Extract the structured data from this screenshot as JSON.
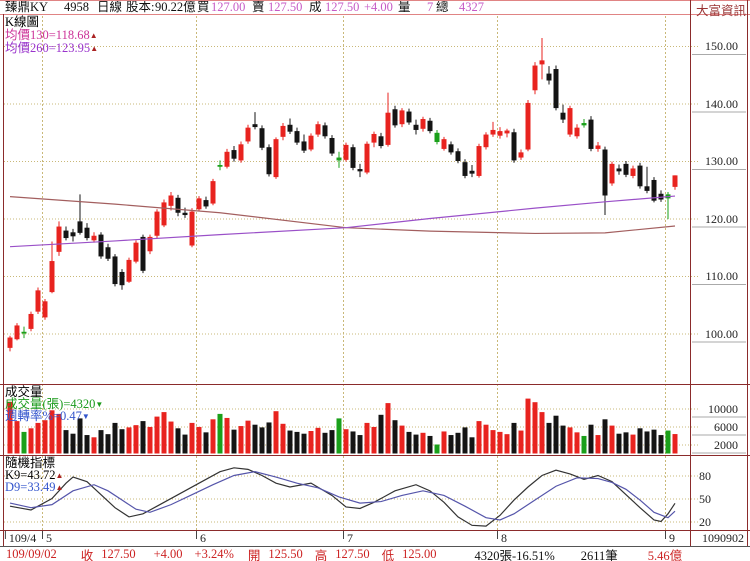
{
  "header": {
    "stock_name": "臻鼎KY",
    "stock_id": "4958",
    "period": "日線",
    "capital_label": "股本:",
    "capital": "90.22億",
    "bid_label": "買",
    "bid": "127.00",
    "ask_label": "賣",
    "ask": "127.50",
    "last_label": "成",
    "last": "127.50",
    "change": "+4.00",
    "vol_label": "量",
    "vol": "7",
    "total_label": "總",
    "total": "4327",
    "brand": "大富資訊"
  },
  "kpane": {
    "title": "K線圖",
    "ma130_label": "均價130=118.68",
    "ma130_arrow": "▲",
    "ma260_label": "均價260=123.95",
    "ma260_arrow": "▲"
  },
  "volpane": {
    "title": "成交量",
    "vol_label": "成交量(張)=4320",
    "vol_arrow": "▼",
    "turnover_label": "週轉率%=0.47",
    "turnover_arrow": "▼"
  },
  "stochpane": {
    "title": "隨機指標",
    "k_label": "K9=43.72",
    "k_arrow": "▲",
    "d_label": "D9=33.49",
    "d_arrow": "▲"
  },
  "status": [
    {
      "t": "109/09/02",
      "c": "red",
      "gap": 6
    },
    {
      "t": "收",
      "c": "red",
      "gap": 24
    },
    {
      "t": "127.50",
      "c": "red",
      "gap": 8
    },
    {
      "t": "+4.00",
      "c": "red",
      "gap": 18
    },
    {
      "t": "+3.24%",
      "c": "red",
      "gap": 12
    },
    {
      "t": "開",
      "c": "red",
      "gap": 14
    },
    {
      "t": "125.50",
      "c": "red",
      "gap": 8
    },
    {
      "t": "高",
      "c": "red",
      "gap": 12
    },
    {
      "t": "127.50",
      "c": "red",
      "gap": 8
    },
    {
      "t": "低",
      "c": "red",
      "gap": 12
    },
    {
      "t": "125.00",
      "c": "red",
      "gap": 8
    },
    {
      "t": "4320張-16.51%",
      "c": "black",
      "gap": 38
    },
    {
      "t": "2611筆",
      "c": "black",
      "gap": 26
    },
    {
      "t": "5.46億",
      "c": "red",
      "gap": 30
    }
  ],
  "colors": {
    "up": "#e8231f",
    "down": "#141414",
    "green": "#1aa01a",
    "ma130": "#a35f5f",
    "ma260": "#9a50c8",
    "grid": "#c9b878",
    "frame": "#8b2b2b",
    "header_underline": "#e08484",
    "header_num": "#c65bc6",
    "label_pink": "#cc3399",
    "label_purple": "#9933cc",
    "label_green": "#1a9a1a",
    "label_blue": "#3355cc",
    "status_red": "#cc2222",
    "text": "#111111",
    "brand": "#993333",
    "axis_sep": "#aaaaaa",
    "stoch_k": "#333333",
    "stoch_d": "#5555aa"
  },
  "chart_data": {
    "type": "candlestick+volume+stochastic",
    "title": "臻鼎KY 4958 日線",
    "price_axis": {
      "ticks": [
        150,
        140,
        130,
        120,
        110,
        100
      ],
      "decimals": 2
    },
    "volume_axis": {
      "ticks": [
        10000,
        6000,
        2000
      ]
    },
    "stoch_axis": {
      "ticks": [
        80,
        50,
        20
      ]
    },
    "x_months": [
      {
        "label": "109/4",
        "i": -0.3,
        "grid": false
      },
      {
        "label": "5",
        "i": 5,
        "grid": true
      },
      {
        "label": "6",
        "i": 27,
        "grid": true
      },
      {
        "label": "7",
        "i": 48,
        "grid": true
      },
      {
        "label": "8",
        "i": 70,
        "grid": true
      },
      {
        "label": "9",
        "i": 94,
        "grid": true
      }
    ],
    "x_last_label": "1090902",
    "candles": [
      [
        97.5,
        99.6,
        96.9,
        99.3,
        "r",
        11500
      ],
      [
        99.0,
        101.8,
        98.8,
        101.4,
        "r",
        7200
      ],
      [
        100.0,
        101.2,
        99.2,
        100.3,
        "g",
        4800
      ],
      [
        100.8,
        103.8,
        100.4,
        103.4,
        "r",
        5600
      ],
      [
        103.8,
        108.0,
        103.4,
        107.5,
        "r",
        6800
      ],
      [
        102.8,
        106.0,
        102.4,
        105.6,
        "r",
        7400
      ],
      [
        107.2,
        116.0,
        107.0,
        112.6,
        "r",
        9600
      ],
      [
        114.2,
        119.5,
        113.5,
        118.6,
        "r",
        8800
      ],
      [
        117.9,
        118.6,
        116.2,
        116.6,
        "k",
        5200
      ],
      [
        117.6,
        118.2,
        116.0,
        116.9,
        "k",
        4400
      ],
      [
        119.5,
        124.2,
        117.2,
        117.5,
        "k",
        7800
      ],
      [
        118.4,
        119.2,
        116.2,
        116.6,
        "k",
        4100
      ],
      [
        116.2,
        117.6,
        115.8,
        117.0,
        "r",
        3600
      ],
      [
        117.2,
        117.6,
        113.0,
        113.4,
        "k",
        5200
      ],
      [
        115.0,
        115.6,
        112.6,
        113.0,
        "k",
        4300
      ],
      [
        113.4,
        113.8,
        108.2,
        108.6,
        "k",
        6800
      ],
      [
        110.7,
        111.2,
        107.6,
        108.4,
        "k",
        5400
      ],
      [
        109.0,
        113.2,
        108.8,
        112.8,
        "r",
        5800
      ],
      [
        112.5,
        116.2,
        112.2,
        115.8,
        "r",
        6300
      ],
      [
        116.8,
        117.2,
        110.5,
        110.9,
        "k",
        7200
      ],
      [
        114.3,
        117.2,
        113.8,
        116.8,
        "r",
        5900
      ],
      [
        117.0,
        121.6,
        116.6,
        121.2,
        "r",
        8200
      ],
      [
        118.8,
        123.3,
        118.5,
        122.8,
        "r",
        9200
      ],
      [
        122.2,
        124.6,
        121.4,
        124.0,
        "r",
        7100
      ],
      [
        123.6,
        124.1,
        120.4,
        121.0,
        "k",
        5600
      ],
      [
        121.0,
        121.9,
        120.1,
        120.6,
        "k",
        4200
      ],
      [
        115.3,
        121.8,
        115.0,
        121.2,
        "r",
        6800
      ],
      [
        121.6,
        123.9,
        121.3,
        123.5,
        "r",
        5900
      ],
      [
        123.2,
        123.8,
        121.7,
        122.1,
        "k",
        4700
      ],
      [
        122.6,
        126.9,
        122.3,
        126.5,
        "r",
        7600
      ],
      [
        129.3,
        130.1,
        128.4,
        129.0,
        "g",
        8800
      ],
      [
        129.0,
        132.1,
        128.7,
        131.6,
        "r",
        7900
      ],
      [
        131.9,
        132.6,
        129.9,
        130.4,
        "k",
        5300
      ],
      [
        130.1,
        133.4,
        129.7,
        132.9,
        "r",
        6100
      ],
      [
        133.4,
        136.3,
        133.0,
        135.8,
        "r",
        7300
      ],
      [
        136.4,
        138.5,
        135.5,
        135.9,
        "k",
        6400
      ],
      [
        135.7,
        136.2,
        131.9,
        132.3,
        "k",
        5800
      ],
      [
        132.4,
        132.9,
        127.3,
        127.7,
        "k",
        6900
      ],
      [
        127.2,
        134.1,
        126.9,
        133.8,
        "r",
        9400
      ],
      [
        134.2,
        136.6,
        133.6,
        136.1,
        "r",
        6600
      ],
      [
        136.3,
        137.4,
        134.7,
        135.1,
        "k",
        5100
      ],
      [
        135.2,
        135.8,
        132.8,
        133.2,
        "k",
        4800
      ],
      [
        133.4,
        134.6,
        131.4,
        131.8,
        "k",
        4400
      ],
      [
        132.0,
        134.8,
        131.7,
        134.4,
        "r",
        5000
      ],
      [
        134.6,
        136.9,
        134.2,
        136.4,
        "r",
        5700
      ],
      [
        136.2,
        136.7,
        133.9,
        134.3,
        "k",
        4600
      ],
      [
        134.0,
        134.5,
        130.9,
        131.3,
        "k",
        5200
      ],
      [
        130.6,
        131.6,
        128.8,
        130.1,
        "g",
        7800
      ],
      [
        130.2,
        133.2,
        129.9,
        132.8,
        "r",
        5400
      ],
      [
        132.4,
        132.9,
        128.4,
        128.8,
        "k",
        4900
      ],
      [
        128.6,
        129.5,
        127.2,
        128.2,
        "k",
        4100
      ],
      [
        128.0,
        133.4,
        127.7,
        133.0,
        "r",
        6800
      ],
      [
        133.2,
        135.1,
        132.4,
        134.7,
        "r",
        5900
      ],
      [
        134.3,
        134.9,
        132.2,
        132.6,
        "k",
        8600
      ],
      [
        132.8,
        141.9,
        132.5,
        138.4,
        "r",
        11200
      ],
      [
        139.0,
        139.6,
        135.8,
        136.2,
        "k",
        7400
      ],
      [
        136.4,
        139.2,
        135.9,
        138.8,
        "r",
        6200
      ],
      [
        138.6,
        139.1,
        136.3,
        136.7,
        "k",
        4800
      ],
      [
        136.3,
        137.2,
        134.6,
        135.4,
        "k",
        4200
      ],
      [
        135.6,
        137.7,
        135.1,
        137.3,
        "r",
        4600
      ],
      [
        137.0,
        137.5,
        134.8,
        135.2,
        "k",
        3900
      ],
      [
        134.9,
        135.4,
        132.9,
        133.3,
        "g",
        2000
      ],
      [
        132.1,
        134.2,
        131.8,
        133.8,
        "r",
        4900
      ],
      [
        132.9,
        133.4,
        131.1,
        131.5,
        "k",
        4100
      ],
      [
        131.7,
        132.2,
        129.6,
        130.0,
        "k",
        4600
      ],
      [
        129.8,
        130.3,
        127.0,
        127.4,
        "k",
        5800
      ],
      [
        128.3,
        129.3,
        127.2,
        127.8,
        "k",
        3600
      ],
      [
        127.4,
        133.0,
        127.1,
        132.6,
        "r",
        7200
      ],
      [
        132.4,
        135.0,
        132.0,
        134.6,
        "r",
        6400
      ],
      [
        134.6,
        136.8,
        134.2,
        135.4,
        "r",
        5200
      ],
      [
        134.4,
        135.9,
        133.9,
        135.2,
        "r",
        4800
      ],
      [
        134.8,
        135.6,
        134.1,
        135.3,
        "r",
        4300
      ],
      [
        135.0,
        135.6,
        129.7,
        130.1,
        "k",
        6800
      ],
      [
        130.6,
        132.0,
        130.2,
        131.5,
        "r",
        5100
      ],
      [
        132.0,
        140.6,
        131.7,
        140.1,
        "r",
        12200
      ],
      [
        142.3,
        147.2,
        141.6,
        146.6,
        "r",
        11400
      ],
      [
        146.8,
        151.4,
        144.2,
        147.5,
        "r",
        9200
      ],
      [
        145.2,
        146.5,
        143.3,
        144.0,
        "k",
        6800
      ],
      [
        146.0,
        146.6,
        138.8,
        139.2,
        "k",
        8400
      ],
      [
        138.4,
        139.8,
        136.6,
        137.2,
        "k",
        6200
      ],
      [
        134.6,
        139.6,
        134.2,
        139.2,
        "r",
        5800
      ],
      [
        134.3,
        136.4,
        133.9,
        135.8,
        "r",
        4700
      ],
      [
        136.6,
        137.3,
        135.8,
        136.2,
        "g",
        3900
      ],
      [
        137.2,
        137.8,
        131.7,
        132.1,
        "k",
        6400
      ],
      [
        132.1,
        133.3,
        131.6,
        132.7,
        "r",
        4100
      ],
      [
        132.0,
        132.5,
        120.6,
        124.0,
        "k",
        7600
      ],
      [
        126.1,
        129.9,
        125.7,
        129.5,
        "r",
        6200
      ],
      [
        128.7,
        129.4,
        127.6,
        128.2,
        "k",
        4400
      ],
      [
        129.5,
        130.0,
        127.2,
        127.6,
        "k",
        4700
      ],
      [
        127.4,
        129.2,
        127.0,
        128.7,
        "r",
        4200
      ],
      [
        129.2,
        129.7,
        125.2,
        125.6,
        "k",
        5600
      ],
      [
        125.6,
        129.0,
        124.4,
        124.8,
        "k",
        4900
      ],
      [
        126.7,
        127.2,
        122.8,
        123.1,
        "k",
        5300
      ],
      [
        124.3,
        124.9,
        122.9,
        123.3,
        "k",
        4100
      ],
      [
        124.2,
        124.6,
        119.9,
        123.5,
        "g",
        5100
      ],
      [
        125.5,
        127.5,
        125.0,
        127.5,
        "r",
        4320
      ]
    ],
    "ma130": [
      [
        0,
        123.8
      ],
      [
        15,
        122.5
      ],
      [
        30,
        121.0
      ],
      [
        48,
        118.4
      ],
      [
        60,
        117.8
      ],
      [
        75,
        117.4
      ],
      [
        85,
        117.5
      ],
      [
        95,
        118.7
      ]
    ],
    "ma260": [
      [
        0,
        115.1
      ],
      [
        15,
        116.1
      ],
      [
        30,
        117.2
      ],
      [
        48,
        118.4
      ],
      [
        60,
        120.0
      ],
      [
        75,
        121.8
      ],
      [
        85,
        122.9
      ],
      [
        95,
        123.9
      ]
    ],
    "stoch_k": [
      [
        0,
        40
      ],
      [
        3,
        35
      ],
      [
        6,
        50
      ],
      [
        8,
        70
      ],
      [
        9,
        78
      ],
      [
        11,
        72
      ],
      [
        13,
        55
      ],
      [
        15,
        38
      ],
      [
        17,
        26
      ],
      [
        19,
        30
      ],
      [
        21,
        40
      ],
      [
        24,
        55
      ],
      [
        27,
        70
      ],
      [
        30,
        85
      ],
      [
        32,
        90
      ],
      [
        34,
        88
      ],
      [
        36,
        80
      ],
      [
        38,
        70
      ],
      [
        40,
        65
      ],
      [
        43,
        70
      ],
      [
        46,
        54
      ],
      [
        48,
        39
      ],
      [
        50,
        37
      ],
      [
        52,
        45
      ],
      [
        55,
        60
      ],
      [
        58,
        68
      ],
      [
        60,
        60
      ],
      [
        62,
        45
      ],
      [
        64,
        26
      ],
      [
        66,
        15
      ],
      [
        68,
        14
      ],
      [
        70,
        28
      ],
      [
        72,
        48
      ],
      [
        74,
        65
      ],
      [
        76,
        80
      ],
      [
        78,
        87
      ],
      [
        80,
        82
      ],
      [
        82,
        75
      ],
      [
        84,
        80
      ],
      [
        86,
        72
      ],
      [
        88,
        55
      ],
      [
        90,
        38
      ],
      [
        92,
        22
      ],
      [
        93,
        20
      ],
      [
        94,
        30
      ],
      [
        95,
        43.7
      ]
    ],
    "stoch_d": [
      [
        0,
        44
      ],
      [
        3,
        38
      ],
      [
        6,
        42
      ],
      [
        9,
        60
      ],
      [
        12,
        68
      ],
      [
        14,
        60
      ],
      [
        16,
        48
      ],
      [
        18,
        36
      ],
      [
        20,
        32
      ],
      [
        23,
        42
      ],
      [
        26,
        55
      ],
      [
        29,
        68
      ],
      [
        32,
        80
      ],
      [
        35,
        85
      ],
      [
        38,
        78
      ],
      [
        41,
        70
      ],
      [
        44,
        64
      ],
      [
        47,
        52
      ],
      [
        50,
        44
      ],
      [
        53,
        46
      ],
      [
        56,
        54
      ],
      [
        59,
        60
      ],
      [
        62,
        54
      ],
      [
        65,
        40
      ],
      [
        68,
        25
      ],
      [
        70,
        22
      ],
      [
        72,
        30
      ],
      [
        75,
        48
      ],
      [
        78,
        66
      ],
      [
        81,
        77
      ],
      [
        84,
        76
      ],
      [
        86,
        71
      ],
      [
        88,
        62
      ],
      [
        90,
        48
      ],
      [
        92,
        32
      ],
      [
        94,
        25
      ],
      [
        95,
        33.5
      ]
    ]
  }
}
